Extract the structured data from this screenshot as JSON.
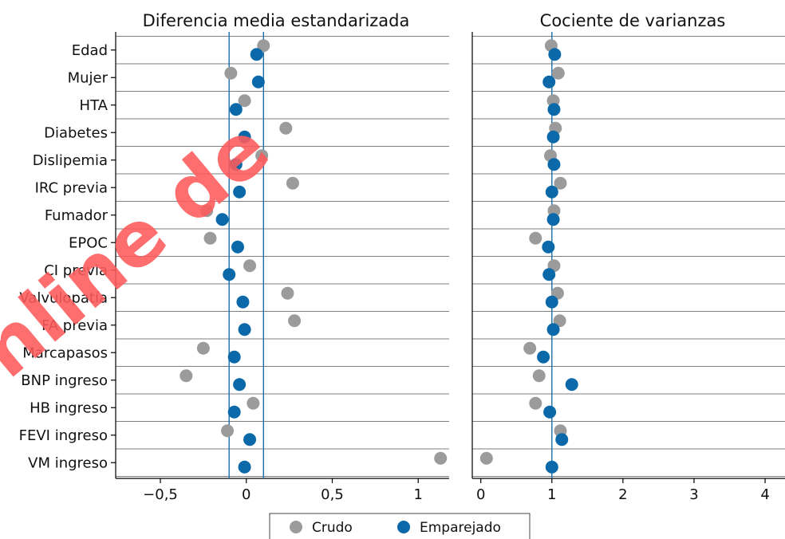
{
  "chart_data": [
    {
      "type": "scatter",
      "title": "Diferencia media estandarizada",
      "categories": [
        "Edad",
        "Mujer",
        "HTA",
        "Diabetes",
        "Dislipemia",
        "IRC previa",
        "Fumador",
        "EPOC",
        "CI previa",
        "Valvulopatía",
        "FA previa",
        "Marcapasos",
        "BNP ingreso",
        "HB ingreso",
        "FEVI ingreso",
        "VM ingreso"
      ],
      "series": [
        {
          "name": "Crudo",
          "values": [
            0.1,
            -0.09,
            -0.01,
            0.23,
            0.09,
            0.27,
            -0.23,
            -0.21,
            0.02,
            0.24,
            0.28,
            -0.25,
            -0.35,
            0.04,
            -0.11,
            1.13
          ]
        },
        {
          "name": "Emparejado",
          "values": [
            0.06,
            0.07,
            -0.06,
            -0.01,
            -0.06,
            -0.04,
            -0.14,
            -0.05,
            -0.1,
            -0.02,
            -0.01,
            -0.07,
            -0.04,
            -0.07,
            0.02,
            -0.01
          ]
        }
      ],
      "xlim": [
        -0.76,
        1.18
      ],
      "xticks": [
        -0.5,
        0,
        0.5,
        1
      ],
      "xtick_labels": [
        "−0,5",
        "0",
        "0,5",
        "1"
      ],
      "reference_lines": [
        -0.1,
        0.1
      ]
    },
    {
      "type": "scatter",
      "title": "Cociente de varianzas",
      "categories": [
        "Edad",
        "Mujer",
        "HTA",
        "Diabetes",
        "Dislipemia",
        "IRC previa",
        "Fumador",
        "EPOC",
        "CI previa",
        "Valvulopatía",
        "FA previa",
        "Marcapasos",
        "BNP ingreso",
        "HB ingreso",
        "FEVI ingreso",
        "VM ingreso"
      ],
      "series": [
        {
          "name": "Crudo",
          "values": [
            0.99,
            1.09,
            1.02,
            1.05,
            0.98,
            1.12,
            1.03,
            0.77,
            1.03,
            1.08,
            1.11,
            0.69,
            0.82,
            0.77,
            1.12,
            0.08
          ]
        },
        {
          "name": "Emparejado",
          "values": [
            1.04,
            0.96,
            1.03,
            1.02,
            1.03,
            1.0,
            1.02,
            0.95,
            0.96,
            1.0,
            1.02,
            0.88,
            1.28,
            0.97,
            1.14,
            1.0
          ]
        }
      ],
      "xlim": [
        -0.12,
        4.28
      ],
      "xticks": [
        0,
        1,
        2,
        3,
        4
      ],
      "xtick_labels": [
        "0",
        "1",
        "2",
        "3",
        "4"
      ],
      "reference_lines": [
        1
      ]
    }
  ],
  "legend": {
    "placement": "bottom-center",
    "items": [
      {
        "label": "Crudo",
        "color": "#9b9b9b"
      },
      {
        "label": "Emparejado",
        "color": "#0b69aa"
      }
    ]
  },
  "colors": {
    "crudo": "#9b9b9b",
    "emparejado": "#0b69aa",
    "refline": "#1a6ea8",
    "grid": "#7f7f7f",
    "watermark": "#ff5a5a"
  },
  "watermark": "online de"
}
